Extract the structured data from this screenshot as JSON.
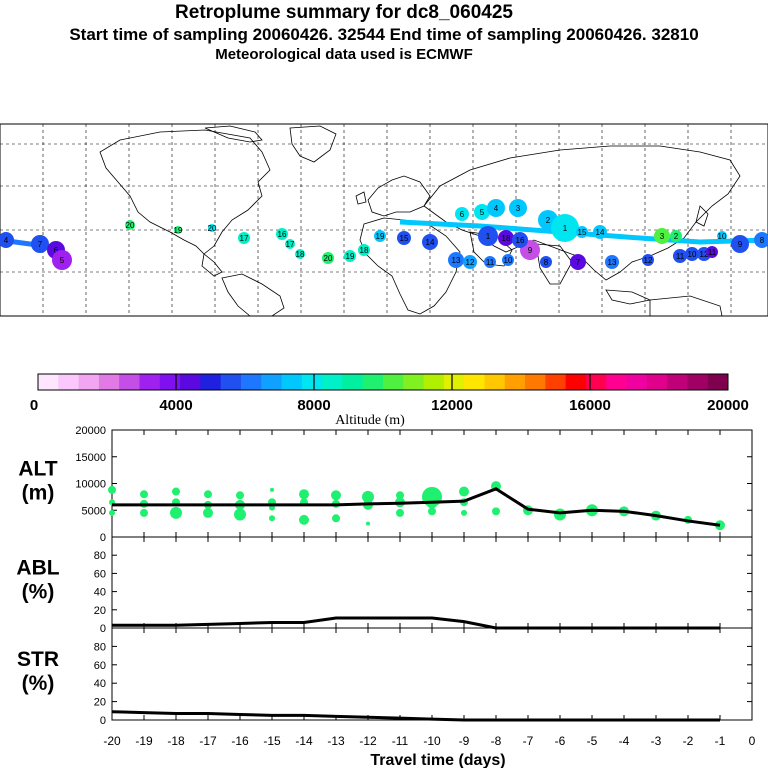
{
  "header": {
    "title": "Retroplume summary for dc8_060425",
    "subtitle": "Start time of sampling 20060426. 32544     End time of sampling 20060426. 32810",
    "met": "Meteorological data used is ECMWF"
  },
  "colorbar": {
    "label": "Altitude (m)",
    "ticks": [
      "0",
      "4000",
      "8000",
      "12000",
      "16000",
      "20000"
    ],
    "colors": [
      "#ffe6ff",
      "#fbc8fb",
      "#f2a6f2",
      "#e27ae6",
      "#c44ee6",
      "#a020f0",
      "#8010f0",
      "#5a0ae0",
      "#2020e0",
      "#2050f0",
      "#1e78ff",
      "#10a0ff",
      "#00c8ff",
      "#00e6f0",
      "#00f0c8",
      "#00f0a0",
      "#20f070",
      "#50f040",
      "#80f020",
      "#b0f000",
      "#e0f000",
      "#ffe600",
      "#ffc800",
      "#ffa000",
      "#ff7800",
      "#ff4000",
      "#ff0000",
      "#ff0050",
      "#ff0090",
      "#f000a0",
      "#e0008c",
      "#c00078",
      "#a00064",
      "#800050"
    ]
  },
  "map": {
    "point_labels": [
      "20",
      "19",
      "20",
      "17",
      "16",
      "17",
      "18",
      "20",
      "19",
      "18",
      "19",
      "15",
      "14",
      "13",
      "12",
      "11",
      "10",
      "9",
      "8",
      "7",
      "6",
      "5",
      "4",
      "3",
      "2",
      "1",
      "15",
      "14",
      "13",
      "12",
      "11",
      "10",
      "12",
      "11",
      "10",
      "9",
      "8",
      "7",
      "6",
      "5",
      "4",
      "3",
      "2",
      "1",
      "18",
      "16",
      "4",
      "3",
      "2",
      "1"
    ]
  },
  "chart_data": [
    {
      "type": "scatter",
      "panel": "ALT",
      "ylabel_line1": "ALT",
      "ylabel_line2": "(m)",
      "ylim": [
        0,
        20000
      ],
      "xlim": [
        -20,
        0
      ],
      "yticks": [
        "0",
        "5000",
        "10000",
        "15000",
        "20000"
      ],
      "line_x": [
        -20,
        -19,
        -18,
        -17,
        -16,
        -15,
        -14,
        -13,
        -12,
        -11,
        -10,
        -9,
        -8,
        -7,
        -6,
        -5,
        -4,
        -3,
        -2,
        -1
      ],
      "line_y": [
        6000,
        6000,
        6000,
        6000,
        6000,
        6000,
        6000,
        6000,
        6200,
        6300,
        6500,
        6700,
        9000,
        5200,
        4500,
        5000,
        4800,
        4000,
        3000,
        2200
      ],
      "points": [
        {
          "x": -20,
          "y": 8800,
          "s": 4
        },
        {
          "x": -20,
          "y": 6500,
          "s": 3
        },
        {
          "x": -20,
          "y": 4500,
          "s": 3
        },
        {
          "x": -19,
          "y": 8000,
          "s": 4
        },
        {
          "x": -19,
          "y": 6200,
          "s": 4
        },
        {
          "x": -19,
          "y": 4500,
          "s": 4
        },
        {
          "x": -18,
          "y": 8500,
          "s": 4
        },
        {
          "x": -18,
          "y": 6500,
          "s": 4
        },
        {
          "x": -18,
          "y": 4500,
          "s": 6
        },
        {
          "x": -17,
          "y": 8000,
          "s": 4
        },
        {
          "x": -17,
          "y": 6000,
          "s": 4
        },
        {
          "x": -17,
          "y": 4500,
          "s": 5
        },
        {
          "x": -16,
          "y": 7800,
          "s": 4
        },
        {
          "x": -16,
          "y": 6000,
          "s": 5
        },
        {
          "x": -16,
          "y": 4200,
          "s": 6
        },
        {
          "x": -15,
          "y": 8800,
          "s": 2
        },
        {
          "x": -15,
          "y": 6500,
          "s": 4
        },
        {
          "x": -15,
          "y": 5500,
          "s": 3
        },
        {
          "x": -15,
          "y": 3500,
          "s": 3
        },
        {
          "x": -14,
          "y": 8000,
          "s": 5
        },
        {
          "x": -14,
          "y": 6500,
          "s": 4
        },
        {
          "x": -14,
          "y": 3200,
          "s": 5
        },
        {
          "x": -13,
          "y": 7800,
          "s": 5
        },
        {
          "x": -13,
          "y": 6200,
          "s": 4
        },
        {
          "x": -13,
          "y": 3500,
          "s": 4
        },
        {
          "x": -12,
          "y": 7500,
          "s": 6
        },
        {
          "x": -12,
          "y": 6000,
          "s": 5
        },
        {
          "x": -12,
          "y": 2500,
          "s": 2
        },
        {
          "x": -11,
          "y": 7800,
          "s": 4
        },
        {
          "x": -11,
          "y": 6500,
          "s": 5
        },
        {
          "x": -11,
          "y": 4500,
          "s": 4
        },
        {
          "x": -10,
          "y": 7500,
          "s": 10
        },
        {
          "x": -10,
          "y": 6500,
          "s": 6
        },
        {
          "x": -10,
          "y": 4800,
          "s": 4
        },
        {
          "x": -9,
          "y": 8500,
          "s": 5
        },
        {
          "x": -9,
          "y": 6500,
          "s": 4
        },
        {
          "x": -9,
          "y": 4500,
          "s": 3
        },
        {
          "x": -8,
          "y": 9500,
          "s": 5
        },
        {
          "x": -8,
          "y": 4800,
          "s": 4
        },
        {
          "x": -7,
          "y": 5000,
          "s": 5
        },
        {
          "x": -6,
          "y": 4200,
          "s": 6
        },
        {
          "x": -5,
          "y": 5000,
          "s": 6
        },
        {
          "x": -4,
          "y": 4800,
          "s": 5
        },
        {
          "x": -3,
          "y": 4000,
          "s": 5
        },
        {
          "x": -2,
          "y": 3200,
          "s": 4
        },
        {
          "x": -1,
          "y": 2200,
          "s": 5
        }
      ]
    },
    {
      "type": "line",
      "panel": "ABL",
      "ylabel_line1": "ABL",
      "ylabel_line2": "(%)",
      "ylim": [
        0,
        100
      ],
      "yticks": [
        "0",
        "20",
        "40",
        "60",
        "80"
      ],
      "x": [
        -20,
        -19,
        -18,
        -17,
        -16,
        -15,
        -14,
        -13,
        -12,
        -11,
        -10,
        -9,
        -8,
        -7,
        -6,
        -5,
        -4,
        -3,
        -2,
        -1
      ],
      "values": [
        3,
        3,
        3,
        4,
        5,
        6,
        6,
        11,
        11,
        11,
        11,
        7,
        0,
        0,
        0,
        0,
        0,
        0,
        0,
        0
      ]
    },
    {
      "type": "line",
      "panel": "STR",
      "ylabel_line1": "STR",
      "ylabel_line2": "(%)",
      "ylim": [
        0,
        100
      ],
      "yticks": [
        "0",
        "20",
        "40",
        "60",
        "80"
      ],
      "xlabel": "Travel time (days)",
      "xticks": [
        "-20",
        "-19",
        "-18",
        "-17",
        "-16",
        "-15",
        "-14",
        "-13",
        "-12",
        "-11",
        "-10",
        "-9",
        "-8",
        "-7",
        "-6",
        "-5",
        "-4",
        "-3",
        "-2",
        "-1",
        "0"
      ],
      "x": [
        -20,
        -19,
        -18,
        -17,
        -16,
        -15,
        -14,
        -13,
        -12,
        -11,
        -10,
        -9,
        -8,
        -7,
        -6,
        -5,
        -4,
        -3,
        -2,
        -1
      ],
      "values": [
        9,
        8,
        7,
        7,
        6,
        5,
        5,
        4,
        3,
        2,
        1,
        0,
        0,
        0,
        0,
        0,
        0,
        0,
        0,
        0
      ]
    }
  ]
}
